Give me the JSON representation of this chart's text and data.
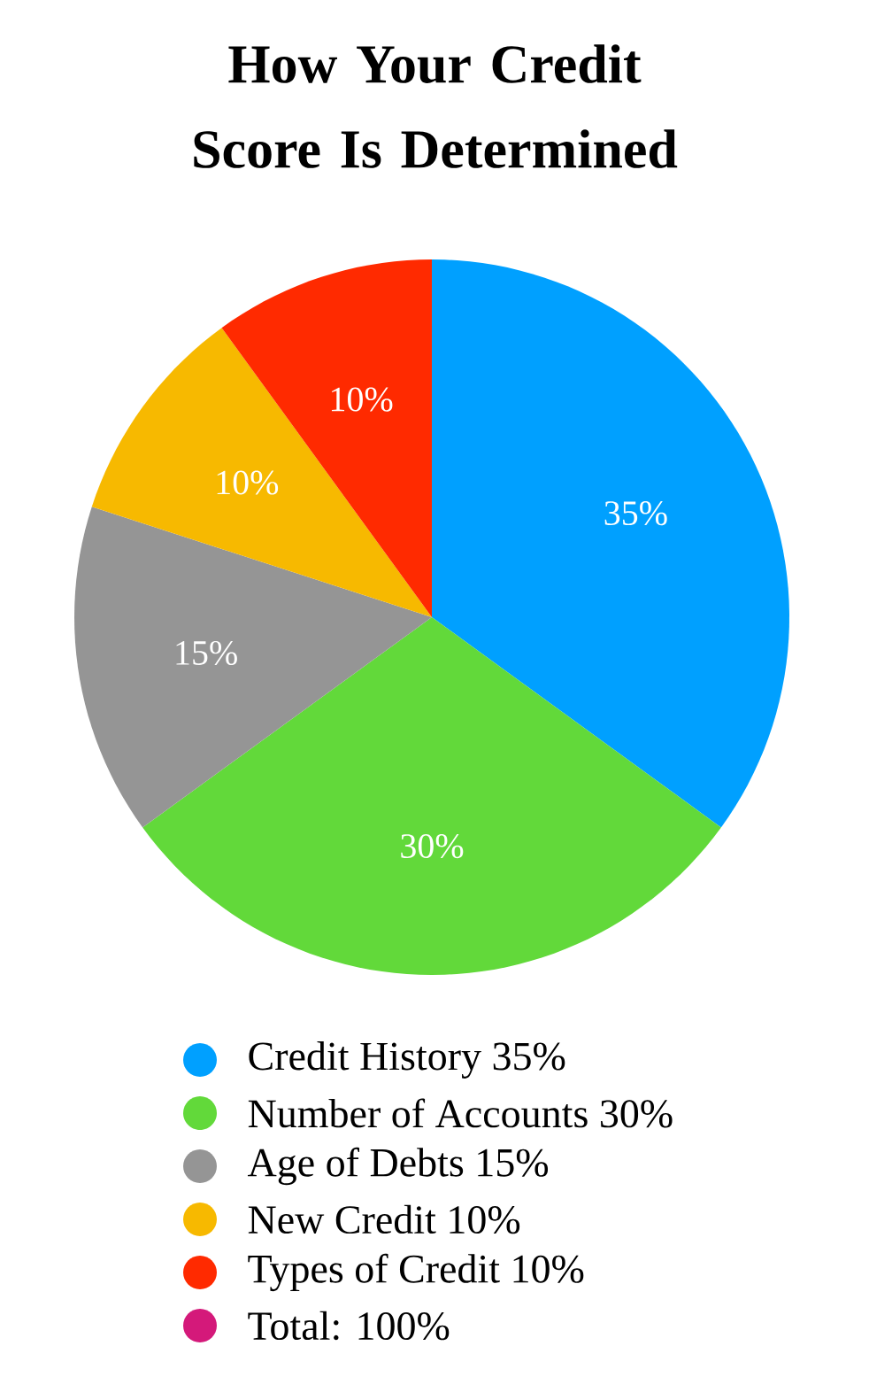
{
  "chart_data": {
    "type": "pie",
    "title": "How Your Credit Score Is Determined",
    "categories": [
      "Credit History 35%",
      "Number of Accounts 30%",
      "Age of Debts 15%",
      "New Credit 10%",
      "Types of Credit 10%"
    ],
    "values": [
      35,
      30,
      15,
      10,
      10
    ],
    "value_labels": [
      "35%",
      "30%",
      "15%",
      "10%",
      "10%"
    ],
    "colors": [
      "#00a0ff",
      "#62d93a",
      "#959595",
      "#f7b900",
      "#ff2a00"
    ],
    "legend": "bottom",
    "annotations": [
      "Total: 100%"
    ]
  }
}
